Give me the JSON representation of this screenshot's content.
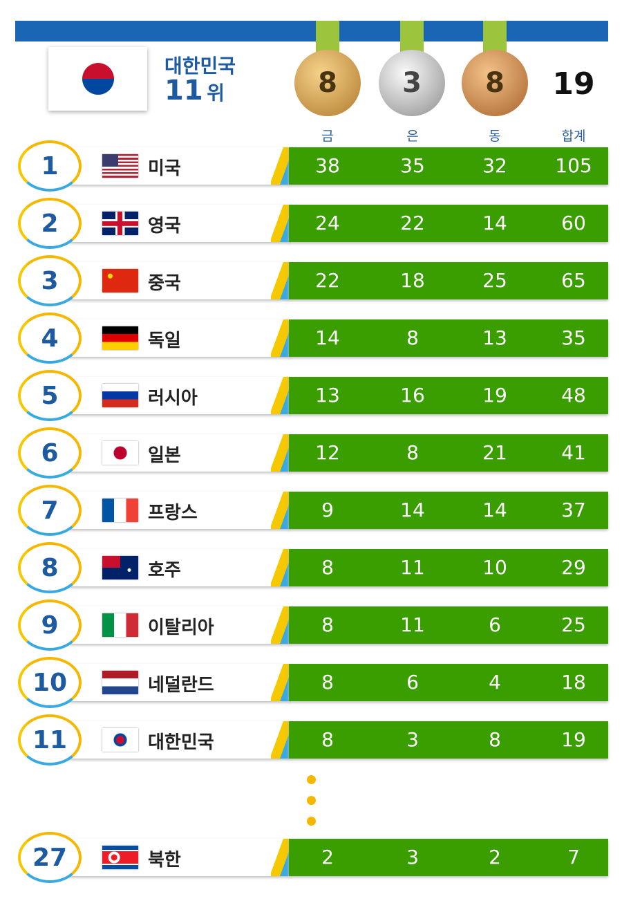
{
  "header": {
    "country": "대한민국",
    "rank": "11",
    "rank_unit": "위",
    "gold": "8",
    "silver": "3",
    "bronze": "8",
    "total": "19"
  },
  "columns": [
    "금",
    "은",
    "동",
    "합계"
  ],
  "rows": [
    [
      "1",
      "미국",
      "38",
      "35",
      "32",
      "105"
    ],
    [
      "2",
      "영국",
      "24",
      "22",
      "14",
      "60"
    ],
    [
      "3",
      "중국",
      "22",
      "18",
      "25",
      "65"
    ],
    [
      "4",
      "독일",
      "14",
      "8",
      "13",
      "35"
    ],
    [
      "5",
      "러시아",
      "13",
      "16",
      "19",
      "48"
    ],
    [
      "6",
      "일본",
      "12",
      "8",
      "21",
      "41"
    ],
    [
      "7",
      "프랑스",
      "9",
      "14",
      "14",
      "37"
    ],
    [
      "8",
      "호주",
      "8",
      "11",
      "10",
      "29"
    ],
    [
      "9",
      "이탈리아",
      "8",
      "11",
      "6",
      "25"
    ],
    [
      "10",
      "네덜란드",
      "8",
      "6",
      "4",
      "18"
    ],
    [
      "11",
      "대한민국",
      "8",
      "3",
      "8",
      "19"
    ],
    [
      "27",
      "북한",
      "2",
      "3",
      "2",
      "7"
    ]
  ]
}
